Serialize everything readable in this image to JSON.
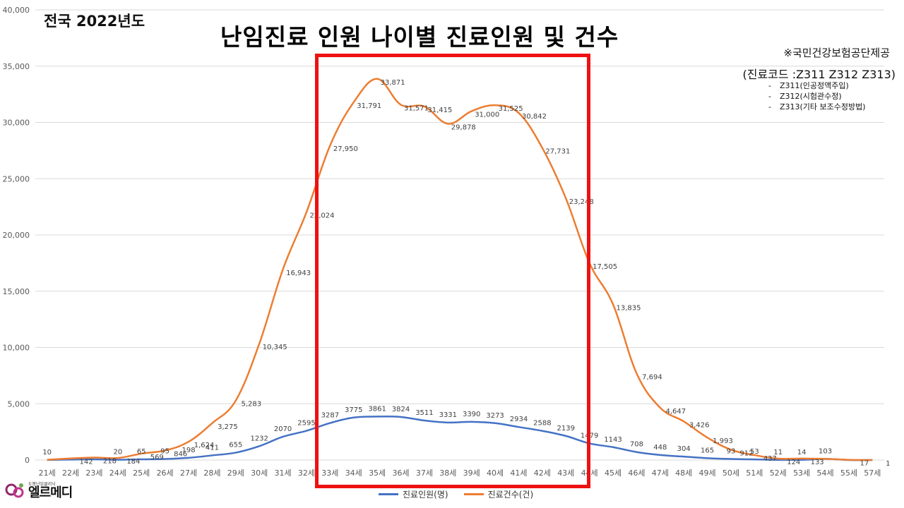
{
  "header": {
    "corner_label": "전국 2022년도",
    "title": "난임진료 인원 나이별 진료인원 및 건수",
    "source": "※국민건강보험공단제공",
    "codes_title": "(진료코드 :Z311 Z312 Z313)",
    "codes": [
      {
        "dash": "-",
        "text": "Z311(인공정액주입)"
      },
      {
        "dash": "-",
        "text": "Z312(시험관수정)"
      },
      {
        "dash": "-",
        "text": "Z313(기타 보조수정방법)"
      }
    ]
  },
  "logo": {
    "small_text": "도봉난임클리닉",
    "text": "엘르메디"
  },
  "colors": {
    "patients": "#4472c4",
    "cases": "#ed7d31",
    "highlight": "#ee1111"
  },
  "chart_data": {
    "type": "line",
    "title": "난임진료 인원 나이별 진료인원 및 건수",
    "ylim": [
      0,
      40000
    ],
    "yticks": [
      "0",
      "5,000",
      "10,000",
      "15,000",
      "20,000",
      "25,000",
      "30,000",
      "35,000",
      "40,000"
    ],
    "categories": [
      "21세",
      "22세",
      "23세",
      "24세",
      "25세",
      "26세",
      "27세",
      "28세",
      "29세",
      "30세",
      "31세",
      "32세",
      "33세",
      "34세",
      "35세",
      "36세",
      "37세",
      "38세",
      "39세",
      "40세",
      "41세",
      "42세",
      "43세",
      "44세",
      "45세",
      "46세",
      "47세",
      "48세",
      "49세",
      "50세",
      "51세",
      "52세",
      "53세",
      "54세",
      "55세",
      "57세"
    ],
    "legend_position": "bottom",
    "grid": true,
    "series": [
      {
        "name": "진료인원(명)",
        "values": [
          10,
          40,
          60,
          20,
          65,
          95,
          198,
          411,
          655,
          1232,
          2070,
          2595,
          3287,
          3775,
          3861,
          3824,
          3511,
          3331,
          3390,
          3273,
          2934,
          2588,
          2139,
          1479,
          1143,
          708,
          448,
          304,
          165,
          93,
          53,
          11,
          14,
          103,
          3,
          1
        ],
        "labels": [
          "10",
          "",
          "",
          "20",
          "65",
          "95",
          "198",
          "411",
          "655",
          "1232",
          "2070",
          "2595",
          "3287",
          "3775",
          "3861",
          "3824",
          "3511",
          "3331",
          "3390",
          "3273",
          "2934",
          "2588",
          "2139",
          "1479",
          "1143",
          "708",
          "448",
          "304",
          "165",
          "93",
          "53",
          "11",
          "14",
          "103",
          "",
          ""
        ]
      },
      {
        "name": "진료건수(건)",
        "values": [
          20,
          142,
          218,
          184,
          569,
          846,
          1624,
          3275,
          5283,
          10345,
          16943,
          22024,
          27950,
          31791,
          33871,
          31571,
          31415,
          29878,
          31000,
          31525,
          30842,
          27731,
          23248,
          17505,
          13835,
          7694,
          4647,
          3426,
          1993,
          912,
          437,
          124,
          133,
          100,
          17,
          1
        ],
        "labels": [
          "",
          "142",
          "218",
          "184",
          "569",
          "846",
          "1,624",
          "3,275",
          "5,283",
          "10,345",
          "16,943",
          "22,024",
          "27,950",
          "31,791",
          "33,871",
          "31,571",
          "31,415",
          "29,878",
          "31,000",
          "31,525",
          "30,842",
          "27,731",
          "23,248",
          "17,505",
          "13,835",
          "7,694",
          "4,647",
          "3,426",
          "1,993",
          "912",
          "437",
          "124",
          "133",
          "",
          "17",
          "1"
        ]
      }
    ]
  }
}
